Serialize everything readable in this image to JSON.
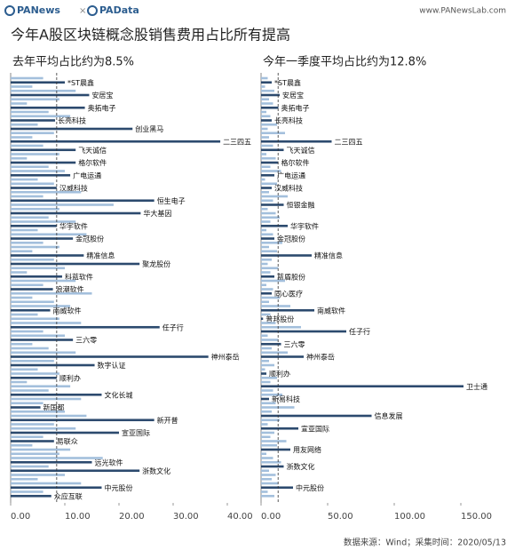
{
  "header": {
    "brand": "PANews",
    "separator": "×",
    "brand2": "PAData",
    "url": "www.PANewsLab.com"
  },
  "title": "今年A股区块链概念股销售费用占比所有提高",
  "source": "数据来源：Wind；采集时间：2020/05/13",
  "chart_data": [
    {
      "type": "barh",
      "title": "去年平均占比约为8.5%",
      "color": "#a3bfdc",
      "highlight_color": "#2c4a6e",
      "average": 8.5,
      "xlim": [
        0,
        40
      ],
      "xticks": [
        {
          "value": 0,
          "label": "0.00"
        },
        {
          "value": 10,
          "label": "10.00"
        },
        {
          "value": 20,
          "label": "20.00"
        },
        {
          "value": 30,
          "label": "30.00"
        },
        {
          "value": 40,
          "label": "40.00"
        }
      ],
      "categories": [
        null,
        "*ST晨鑫",
        null,
        null,
        "安居宝",
        null,
        null,
        "奥拓电子",
        null,
        null,
        "长亮科技",
        null,
        "创业黑马",
        null,
        null,
        "二三四五",
        null,
        "飞天诚信",
        null,
        null,
        "格尔软件",
        null,
        null,
        "广电运通",
        null,
        null,
        "汉威科技",
        null,
        null,
        "恒生电子",
        null,
        null,
        "华大基因",
        null,
        null,
        "华宇软件",
        null,
        null,
        "金冠股份",
        null,
        null,
        null,
        "精准信息",
        null,
        "聚龙股份",
        null,
        null,
        "科蓝软件",
        null,
        null,
        "浪潮软件",
        null,
        null,
        null,
        null,
        "南威软件",
        null,
        null,
        null,
        "任子行",
        null,
        null,
        "三六零",
        null,
        null,
        null,
        "神州泰岳",
        null,
        "数字认证",
        null,
        null,
        "顺利办",
        null,
        null,
        null,
        "文化长城",
        null,
        null,
        "新国都",
        null,
        null,
        "新开普",
        null,
        null,
        "宣亚国际",
        null,
        "易联众",
        null,
        null,
        null,
        null,
        "远光软件",
        null,
        "浙数文化",
        null,
        null,
        null,
        "中元股份",
        null,
        "众应互联"
      ],
      "values": [
        6,
        10,
        4,
        12,
        14.5,
        9,
        3,
        13.7,
        7,
        11,
        8.2,
        5,
        22.5,
        8,
        4,
        38.7,
        6,
        12,
        9,
        3,
        12,
        7,
        10,
        11,
        5,
        8,
        8.5,
        13,
        6,
        26.5,
        19,
        9,
        24,
        7,
        12,
        8.5,
        5,
        14,
        11.5,
        6,
        9,
        4,
        13.5,
        8,
        23.8,
        10,
        3,
        9.5,
        12,
        6,
        7.8,
        15,
        4,
        8,
        11,
        7.3,
        5,
        9,
        13,
        27.5,
        6,
        10,
        11.5,
        4,
        7,
        12,
        36.5,
        8,
        15.5,
        5,
        9,
        8.5,
        3,
        11,
        7,
        16.8,
        13,
        6,
        5.5,
        10,
        14,
        26.5,
        8,
        12,
        20,
        6,
        8,
        4,
        11,
        9,
        17,
        15,
        7,
        23.8,
        10,
        5,
        13,
        16.8,
        6,
        7.5
      ]
    },
    {
      "type": "barh",
      "title": "今年一季度平均占比约为12.8%",
      "color": "#a3bfdc",
      "highlight_color": "#2c4a6e",
      "average": 12.8,
      "xlim": [
        0,
        150
      ],
      "xticks": [
        {
          "value": 0,
          "label": "0.00"
        },
        {
          "value": 50,
          "label": "50.00"
        },
        {
          "value": 100,
          "label": "100.00"
        },
        {
          "value": 150,
          "label": "150.00"
        }
      ],
      "categories": [
        null,
        "*ST晨鑫",
        null,
        null,
        "安居宝",
        null,
        null,
        "奥拓电子",
        null,
        null,
        "长亮科技",
        null,
        null,
        null,
        null,
        "二三四五",
        null,
        "飞天诚信",
        null,
        null,
        "格尔软件",
        null,
        null,
        "广电运通",
        null,
        null,
        "汉威科技",
        null,
        null,
        null,
        "恒银金融",
        null,
        null,
        null,
        null,
        "华宇软件",
        null,
        null,
        "金冠股份",
        null,
        null,
        null,
        "精准信息",
        null,
        null,
        null,
        null,
        "蓝盾股份",
        null,
        null,
        null,
        "同心医疗",
        null,
        null,
        null,
        "南威软件",
        null,
        "普邦股份",
        null,
        null,
        "任子行",
        null,
        null,
        "三六零",
        null,
        null,
        "神州泰岳",
        null,
        null,
        null,
        "顺利办",
        null,
        null,
        "卫士通",
        null,
        null,
        "新易科技",
        null,
        null,
        null,
        "信息发展",
        null,
        null,
        "宣亚国际",
        null,
        null,
        null,
        null,
        "用友网络",
        null,
        null,
        null,
        "浙数文化",
        null,
        null,
        null,
        null,
        "中元股份",
        null,
        null
      ],
      "values": [
        5,
        8,
        3,
        10,
        14,
        6,
        9,
        13,
        4,
        7,
        8,
        12,
        5,
        18,
        6,
        53,
        9,
        17,
        4,
        11,
        13,
        7,
        15,
        10,
        3,
        12,
        8,
        6,
        20,
        9,
        17,
        5,
        11,
        14,
        7,
        20,
        4,
        9,
        10,
        16,
        6,
        12,
        38,
        8,
        5,
        13,
        7,
        10,
        18,
        4,
        9,
        8,
        14,
        6,
        22,
        40,
        7,
        1.5,
        11,
        30,
        64,
        5,
        13,
        15,
        8,
        20,
        32,
        6,
        10,
        3,
        4,
        12,
        7,
        152,
        9,
        16,
        6,
        11,
        25,
        8,
        83,
        14,
        5,
        28,
        10,
        7,
        19,
        12,
        22,
        4,
        9,
        15,
        17,
        6,
        11,
        8,
        13,
        24,
        5,
        10
      ]
    }
  ]
}
